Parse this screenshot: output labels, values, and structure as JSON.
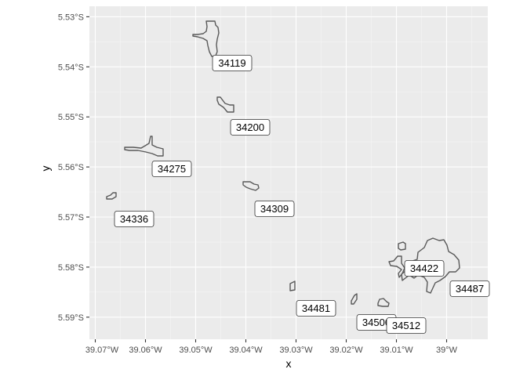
{
  "map": {
    "xlabel": "x",
    "ylabel": "y",
    "x_ticks": [
      "39.07°W",
      "39.06°W",
      "39.05°W",
      "39.04°W",
      "39.03°W",
      "39.02°W",
      "39.01°W",
      "39°W"
    ],
    "y_ticks": [
      "5.53°S",
      "5.54°S",
      "5.55°S",
      "5.56°S",
      "5.57°S",
      "5.58°S",
      "5.59°S"
    ],
    "labels": [
      "34119",
      "34200",
      "34275",
      "34309",
      "34336",
      "34422",
      "34481",
      "34487",
      "34500",
      "34512"
    ],
    "colors": {
      "panel_background": "#ebebeb",
      "grid": "#ffffff",
      "outline": "#595959",
      "fill": "#ebebeb",
      "label_background": "#ffffff"
    }
  }
}
